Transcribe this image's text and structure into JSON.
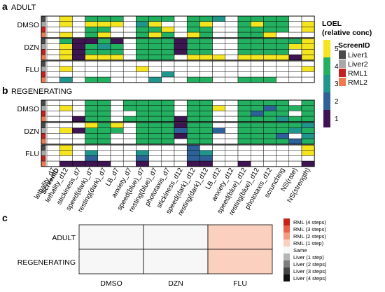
{
  "chart_data": [
    {
      "type": "heatmap",
      "panel_label": "a",
      "title": "ADULT",
      "groups": [
        "DMSO",
        "DZN",
        "FLU"
      ],
      "row_screens": [
        "Liver1",
        "Liver2",
        "RML1",
        "RML2"
      ],
      "columns": [
        "lethality_d7",
        "lethality_d12",
        "stickiness_d7",
        "speed(dark)_d7",
        "resting(dark)_d7",
        "LB_d7",
        "anxiety_d7",
        "speed(blue)_d7",
        "resting(blue)_d7",
        "phototaxis_d7",
        "stickiness_d12",
        "speed(dark)_d12",
        "resting(dark)_d12",
        "LB_d12",
        "anxiety_d12",
        "speed(blue)_d12",
        "resting(blue)_d12",
        "phototaxis_d12",
        "scrunching",
        "NS(rate)",
        "NS(strength)"
      ],
      "values": {
        "DMSO": [
          [
            0,
            5,
            0,
            4,
            4,
            4,
            0,
            4,
            4,
            4,
            0,
            4,
            4,
            3,
            0,
            4,
            4,
            4,
            4,
            0,
            0
          ],
          [
            0,
            5,
            0,
            5,
            5,
            5,
            0,
            3,
            5,
            0,
            0,
            4,
            5,
            0,
            0,
            4,
            5,
            4,
            4,
            0,
            5
          ],
          [
            0,
            0,
            0,
            4,
            4,
            0,
            0,
            4,
            4,
            5,
            0,
            4,
            4,
            0,
            0,
            4,
            4,
            4,
            4,
            0,
            5
          ],
          [
            0,
            5,
            0,
            4,
            5,
            0,
            0,
            4,
            5,
            4,
            0,
            5,
            4,
            0,
            0,
            4,
            4,
            5,
            0,
            0,
            0
          ]
        ],
        "DZN": [
          [
            0,
            4,
            1,
            1,
            4,
            1,
            0,
            4,
            4,
            4,
            1,
            4,
            4,
            0,
            0,
            4,
            4,
            4,
            4,
            4,
            5
          ],
          [
            0,
            5,
            1,
            4,
            3,
            4,
            0,
            4,
            4,
            4,
            1,
            4,
            4,
            0,
            0,
            4,
            4,
            4,
            4,
            5,
            5
          ],
          [
            0,
            5,
            1,
            4,
            4,
            4,
            0,
            4,
            4,
            4,
            1,
            4,
            4,
            0,
            0,
            4,
            4,
            4,
            4,
            0,
            5
          ],
          [
            0,
            5,
            1,
            5,
            5,
            5,
            0,
            4,
            4,
            4,
            0,
            5,
            5,
            5,
            0,
            5,
            5,
            5,
            5,
            1,
            5
          ]
        ],
        "FLU": [
          [
            0,
            0,
            0,
            0,
            0,
            0,
            0,
            0,
            0,
            0,
            0,
            0,
            0,
            0,
            0,
            0,
            0,
            0,
            0,
            0,
            0
          ],
          [
            0,
            5,
            0,
            0,
            0,
            0,
            0,
            5,
            0,
            0,
            0,
            0,
            0,
            0,
            0,
            0,
            0,
            0,
            0,
            0,
            5
          ],
          [
            0,
            0,
            0,
            0,
            0,
            0,
            0,
            0,
            0,
            3,
            0,
            0,
            0,
            0,
            0,
            0,
            0,
            0,
            0,
            0,
            0
          ],
          [
            0,
            3,
            0,
            4,
            4,
            0,
            0,
            0,
            3,
            0,
            0,
            4,
            4,
            0,
            0,
            4,
            4,
            4,
            0,
            0,
            0
          ]
        ]
      }
    },
    {
      "type": "heatmap",
      "panel_label": "b",
      "title": "REGENERATING",
      "groups": [
        "DMSO",
        "DZN",
        "FLU"
      ],
      "row_screens": [
        "Liver1",
        "Liver2",
        "RML1",
        "RML2"
      ],
      "columns": [
        "lethality_d7",
        "lethality_d12",
        "stickiness_d7",
        "speed(dark)_d7",
        "resting(dark)_d7",
        "LB_d7",
        "anxiety_d7",
        "speed(blue)_d7",
        "resting(blue)_d7",
        "phototaxis_d7",
        "stickiness_d12",
        "speed(dark)_d12",
        "resting(dark)_d12",
        "LB_d12",
        "anxiety_d12",
        "speed(blue)_d12",
        "resting(blue)_d12",
        "phototaxis_d12",
        "scrunching",
        "NS(rate)",
        "NS(strength)"
      ],
      "values": {
        "DMSO": [
          [
            0,
            0,
            0,
            4,
            4,
            0,
            4,
            4,
            4,
            4,
            0,
            4,
            4,
            0,
            0,
            4,
            4,
            4,
            4,
            0,
            4
          ],
          [
            0,
            5,
            0,
            4,
            4,
            0,
            4,
            4,
            4,
            4,
            0,
            4,
            4,
            5,
            0,
            4,
            4,
            2,
            4,
            4,
            4
          ],
          [
            0,
            0,
            0,
            4,
            4,
            0,
            0,
            4,
            4,
            4,
            0,
            4,
            4,
            0,
            0,
            4,
            2,
            4,
            4,
            0,
            4
          ],
          [
            0,
            0,
            1,
            4,
            4,
            0,
            4,
            4,
            4,
            4,
            1,
            4,
            4,
            0,
            0,
            4,
            4,
            4,
            3,
            4,
            4
          ]
        ],
        "DZN": [
          [
            0,
            0,
            0,
            5,
            4,
            5,
            0,
            4,
            4,
            4,
            1,
            4,
            4,
            0,
            0,
            4,
            4,
            4,
            4,
            4,
            3
          ],
          [
            0,
            5,
            1,
            4,
            4,
            4,
            0,
            4,
            4,
            4,
            2,
            4,
            4,
            2,
            0,
            4,
            4,
            4,
            4,
            3,
            4
          ],
          [
            0,
            0,
            0,
            4,
            4,
            0,
            0,
            4,
            4,
            4,
            1,
            4,
            4,
            0,
            0,
            4,
            4,
            4,
            2,
            0,
            3
          ],
          [
            0,
            0,
            0,
            4,
            4,
            0,
            0,
            4,
            4,
            4,
            0,
            4,
            4,
            0,
            0,
            4,
            4,
            4,
            4,
            2,
            4
          ]
        ],
        "FLU": [
          [
            0,
            5,
            0,
            0,
            0,
            0,
            0,
            0,
            0,
            0,
            0,
            2,
            0,
            0,
            0,
            0,
            0,
            0,
            0,
            0,
            5
          ],
          [
            0,
            5,
            0,
            3,
            0,
            0,
            0,
            3,
            0,
            0,
            0,
            2,
            3,
            0,
            0,
            0,
            0,
            0,
            0,
            0,
            5
          ],
          [
            0,
            0,
            0,
            2,
            0,
            0,
            0,
            2,
            0,
            0,
            0,
            2,
            2,
            0,
            0,
            0,
            0,
            0,
            0,
            0,
            0
          ],
          [
            0,
            1,
            1,
            1,
            1,
            0,
            0,
            1,
            0,
            0,
            0,
            1,
            1,
            0,
            0,
            1,
            0,
            0,
            0,
            0,
            1
          ]
        ]
      }
    },
    {
      "type": "heatmap",
      "panel_label": "c",
      "rows": [
        "ADULT",
        "REGENERATING"
      ],
      "columns": [
        "DMSO",
        "DZN",
        "FLU"
      ],
      "values": [
        [
          "Same",
          "Same",
          "RML (1 step)"
        ],
        [
          "Same",
          "Same",
          "RML (1 step)"
        ]
      ],
      "legend": [
        "RML (4 steps)",
        "RML (3 steps)",
        "RML (2 steps)",
        "RML (1 step)",
        "Same",
        "Liver (1 step)",
        "Liver (2 steps)",
        "Liver (3 steps)",
        "Liver (4 steps)"
      ],
      "legend_colors": [
        "#c6221c",
        "#e8624b",
        "#f39b83",
        "#fbd0bf",
        "#f7f7f7",
        "#b5b5b5",
        "#7d7d7d",
        "#444444",
        "#111111"
      ]
    }
  ],
  "legend_loel": {
    "title_line1": "LOEL",
    "title_line2": "(relative conc)",
    "levels": [
      "5",
      "4",
      "3",
      "2",
      "1"
    ],
    "colors": {
      "1": "#3f1452",
      "2": "#2d6197",
      "3": "#20958c",
      "4": "#23b061",
      "5": "#f5e420"
    }
  },
  "legend_screen": {
    "title": "ScreenID",
    "items": [
      "Liver1",
      "Liver2",
      "RML1",
      "RML2"
    ],
    "colors": [
      "#4a4a4a",
      "#a8a8a8",
      "#c32020",
      "#f07a4f"
    ]
  },
  "screen_axis_label": "ScreenID",
  "empty_color": "#ffffff"
}
